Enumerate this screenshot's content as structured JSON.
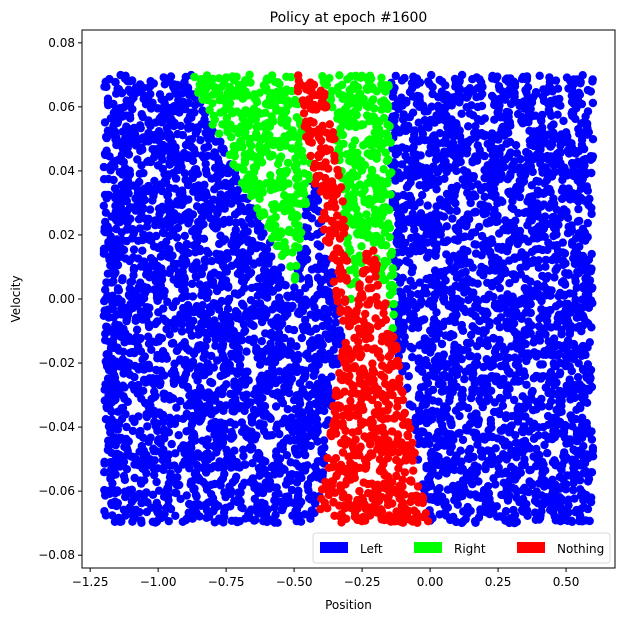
{
  "chart_data": {
    "type": "scatter",
    "title": "Policy at epoch #1600",
    "xlabel": "Position",
    "ylabel": "Velocity",
    "xlim": [
      -1.28,
      0.68
    ],
    "ylim": [
      -0.084,
      0.084
    ],
    "x_ticks": [
      -1.25,
      -1.0,
      -0.75,
      -0.5,
      -0.25,
      0.0,
      0.25,
      0.5
    ],
    "x_tick_labels": [
      "−1.25",
      "−1.00",
      "−0.75",
      "−0.50",
      "−0.25",
      "0.00",
      "0.25",
      "0.50"
    ],
    "y_ticks": [
      -0.08,
      -0.06,
      -0.04,
      -0.02,
      0.0,
      0.02,
      0.04,
      0.06,
      0.08
    ],
    "y_tick_labels": [
      "−0.08",
      "−0.06",
      "−0.04",
      "−0.02",
      "0.00",
      "0.02",
      "0.04",
      "0.06",
      "0.08"
    ],
    "grid": false,
    "legend_placement": "bottom-right",
    "series": [
      {
        "name": "Left",
        "color": "#0000ff",
        "region_polygons": [
          [
            [
              -1.2,
              0.07
            ],
            [
              -0.87,
              0.07
            ],
            [
              -0.87,
              0.066
            ],
            [
              -0.5,
              0.003
            ],
            [
              -0.3,
              -0.007
            ],
            [
              -0.3,
              -0.07
            ],
            [
              -1.2,
              -0.07
            ]
          ],
          [
            [
              -0.12,
              0.07
            ],
            [
              0.6,
              0.07
            ],
            [
              0.6,
              -0.07
            ],
            [
              -0.12,
              -0.07
            ]
          ]
        ]
      },
      {
        "name": "Right",
        "color": "#00ff00",
        "region_polygons": [
          [
            [
              -0.87,
              0.07
            ],
            [
              -0.15,
              0.07
            ],
            [
              -0.13,
              -0.012
            ],
            [
              -0.22,
              0.02
            ],
            [
              -0.29,
              -0.005
            ],
            [
              -0.32,
              0.03
            ],
            [
              -0.35,
              0.052
            ],
            [
              -0.4,
              0.06
            ],
            [
              -0.5,
              0.004
            ],
            [
              -0.87,
              0.066
            ]
          ]
        ]
      },
      {
        "name": "Nothing",
        "color": "#ff0000",
        "region_polygons": [
          [
            [
              -0.5,
              0.07
            ],
            [
              -0.4,
              0.07
            ],
            [
              -0.35,
              0.052
            ],
            [
              -0.32,
              0.03
            ],
            [
              -0.29,
              -0.005
            ],
            [
              -0.22,
              0.02
            ],
            [
              -0.13,
              -0.012
            ],
            [
              0.0,
              -0.07
            ],
            [
              -0.42,
              -0.07
            ],
            [
              -0.32,
              -0.01
            ]
          ]
        ]
      }
    ]
  }
}
